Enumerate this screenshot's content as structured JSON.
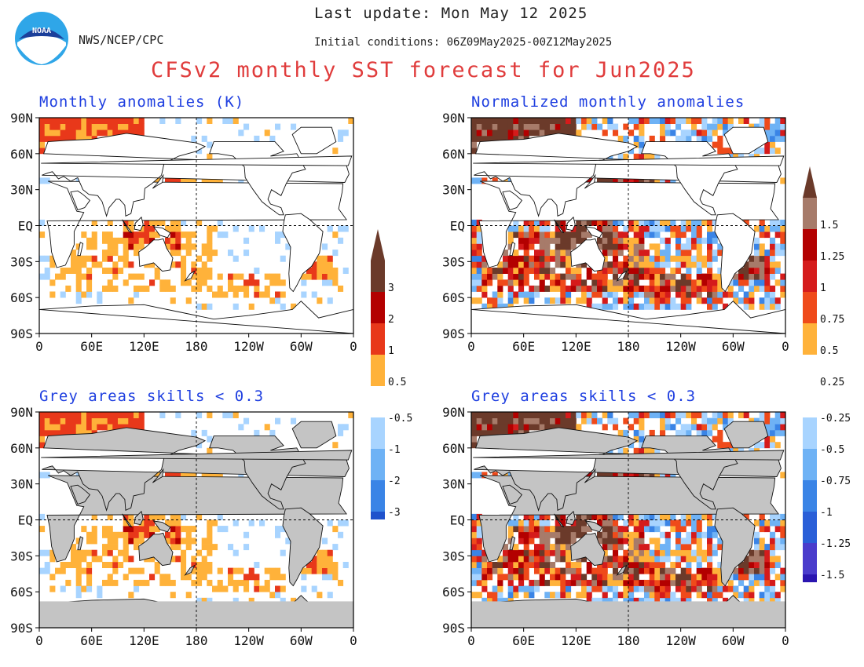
{
  "header": {
    "logo_text": "NOAA",
    "agency": "NWS/NCEP/CPC",
    "last_update": "Last update: Mon May 12 2025",
    "initial_conditions": "Initial conditions: 06Z09May2025-00Z12May2025",
    "title": "CFSv2 monthly SST forecast for Jun2025"
  },
  "panels": [
    {
      "title": "Monthly anomalies (K)"
    },
    {
      "title": "Normalized monthly anomalies"
    },
    {
      "title": "Grey areas skills < 0.3"
    },
    {
      "title": "Grey areas skills < 0.3"
    }
  ],
  "axes": {
    "lat_labels": [
      "90N",
      "60N",
      "30N",
      "EQ",
      "30S",
      "60S",
      "90S"
    ],
    "lon_labels": [
      "0",
      "60E",
      "120E",
      "180",
      "120W",
      "60W",
      "0"
    ]
  },
  "legend_k": {
    "pos": [
      {
        "label": "3",
        "color": "#6b3a2a"
      },
      {
        "label": "2",
        "color": "#b30000"
      },
      {
        "label": "1",
        "color": "#e8381a"
      },
      {
        "label": "0.5",
        "color": "#ffb23a"
      }
    ],
    "neg": [
      {
        "label": "-0.5",
        "color": "#a8d4ff"
      },
      {
        "label": "-1",
        "color": "#6eb2f5"
      },
      {
        "label": "-2",
        "color": "#3a84e6"
      },
      {
        "label": "-3",
        "color": "#1f52cc"
      }
    ],
    "tip_pos_color": "#6b3a2a",
    "tip_neg_color": "#1f10a0"
  },
  "legend_norm": {
    "pos": [
      {
        "label": "1.5",
        "color": "#a77b6a"
      },
      {
        "label": "1.25",
        "color": "#b30000"
      },
      {
        "label": "1",
        "color": "#d51b1b"
      },
      {
        "label": "0.75",
        "color": "#ef4a1a"
      },
      {
        "label": "0.5",
        "color": "#ffb23a"
      },
      {
        "label": "0.25",
        "color": "#ffffff"
      }
    ],
    "neg": [
      {
        "label": "-0.25",
        "color": "#a8d4ff"
      },
      {
        "label": "-0.5",
        "color": "#6eb2f5"
      },
      {
        "label": "-0.75",
        "color": "#3a84e6"
      },
      {
        "label": "-1",
        "color": "#2a5fd8"
      },
      {
        "label": "-1.25",
        "color": "#4a3ccc"
      },
      {
        "label": "-1.5",
        "color": "#2a15b0"
      }
    ],
    "tip_pos_color": "#6b3a2a",
    "tip_neg_color": "#1f10a0"
  }
}
